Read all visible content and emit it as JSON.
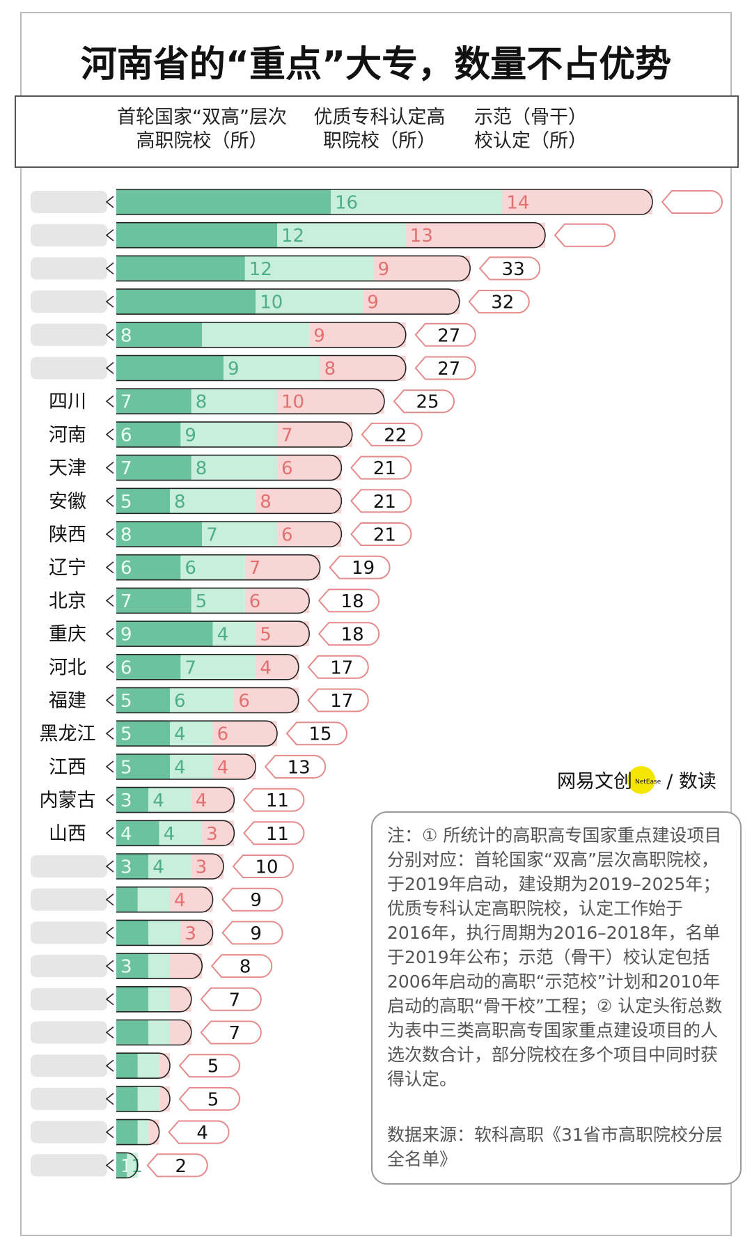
{
  "chart_data": {
    "type": "bar",
    "orientation": "horizontal",
    "stacked": true,
    "title": "河南省的“重点”大专，数量不占优势",
    "categories": [
      null,
      null,
      null,
      null,
      null,
      null,
      "四川",
      "河南",
      "天津",
      "安徽",
      "陕西",
      "辽宁",
      "北京",
      "重庆",
      "河北",
      "福建",
      "黑龙江",
      "江西",
      "内蒙古",
      "山西",
      null,
      null,
      null,
      null,
      null,
      null,
      null,
      null,
      null,
      null
    ],
    "series": [
      {
        "name": "首轮国家“双高”层次高职院校（所）",
        "color": "#6cc19f",
        "values": [
          20,
          15,
          12,
          13,
          8,
          10,
          7,
          6,
          7,
          5,
          8,
          6,
          7,
          9,
          6,
          5,
          5,
          5,
          3,
          4,
          3,
          2,
          3,
          3,
          3,
          3,
          2,
          2,
          2,
          1
        ],
        "value_labels": [
          null,
          null,
          null,
          null,
          "8",
          null,
          "7",
          "6",
          "7",
          "5",
          "8",
          "6",
          "7",
          "9",
          "6",
          "5",
          "5",
          "5",
          "3",
          "4",
          "3",
          null,
          null,
          "3",
          null,
          null,
          null,
          null,
          null,
          "1"
        ]
      },
      {
        "name": "优质专科认定高职院校（所）",
        "color": "#c8eedc",
        "values": [
          16,
          12,
          12,
          10,
          10,
          9,
          8,
          9,
          8,
          8,
          7,
          6,
          5,
          4,
          7,
          6,
          4,
          4,
          4,
          4,
          4,
          3,
          3,
          2,
          2,
          2,
          2,
          2,
          1,
          1
        ],
        "value_labels": [
          "16",
          "12",
          "12",
          "10",
          null,
          "9",
          "8",
          "9",
          "8",
          "8",
          "7",
          "6",
          "5",
          "4",
          "7",
          "6",
          "4",
          "4",
          "4",
          "4",
          "4",
          null,
          null,
          null,
          null,
          null,
          null,
          null,
          null,
          "1"
        ]
      },
      {
        "name": "示范（骨干）校认定（所）",
        "color": "#f8d6d6",
        "values": [
          14,
          13,
          9,
          9,
          9,
          8,
          10,
          7,
          6,
          8,
          6,
          7,
          6,
          5,
          4,
          6,
          6,
          4,
          4,
          3,
          3,
          4,
          3,
          3,
          2,
          2,
          1,
          1,
          1,
          0
        ],
        "value_labels": [
          "14",
          "13",
          "9",
          "9",
          "9",
          "8",
          "10",
          "7",
          "6",
          "8",
          "6",
          "7",
          "6",
          "5",
          "4",
          "6",
          "6",
          "4",
          "4",
          "3",
          "3",
          "4",
          "3",
          null,
          null,
          null,
          null,
          null,
          null,
          null
        ]
      }
    ],
    "totals": [
      50,
      40,
      33,
      32,
      27,
      27,
      25,
      22,
      21,
      21,
      21,
      19,
      18,
      18,
      17,
      17,
      15,
      13,
      11,
      11,
      10,
      9,
      9,
      8,
      7,
      7,
      5,
      5,
      4,
      2
    ],
    "total_labels": [
      null,
      null,
      "33",
      "32",
      "27",
      "27",
      "25",
      "22",
      "21",
      "21",
      "21",
      "19",
      "18",
      "18",
      "17",
      "17",
      "15",
      "13",
      "11",
      "11",
      "10",
      "9",
      "9",
      "8",
      "7",
      "7",
      "5",
      "5",
      "4",
      "2"
    ],
    "logo": "网易文创",
    "logo_badge": "NetEase",
    "logo_suffix": "/ 数读",
    "note": "注：① 所统计的高职高专国家重点建设项目分别对应：首轮国家“双高”层次高职院校，于2019年启动，建设期为2019–2025年；优质专科认定高职院校，认定工作始于2016年，执行周期为2016–2018年，名单于2019年公布；示范（骨干）校认定包括2006年启动的高职“示范校”计划和2010年启动的高职“骨干校”工程；② 认定头衔总数为表中三类高职高专国家重点建设项目的人选次数合计，部分院校在多个项目中同时获得认定。",
    "source": "数据来源：软科高职《31省市高职院校分层全名单》"
  }
}
